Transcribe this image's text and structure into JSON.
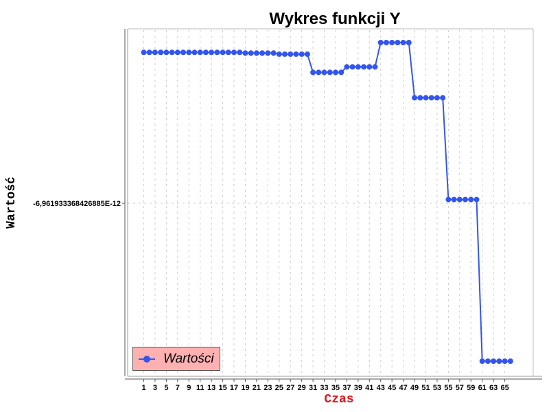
{
  "chart_data": {
    "type": "line",
    "title": "Wykres funkcji Y",
    "xlabel": "Czas",
    "ylabel": "Wartość",
    "x_ticks": [
      "1",
      "3",
      "5",
      "7",
      "9",
      "11",
      "13",
      "15",
      "17",
      "19",
      "21",
      "23",
      "25",
      "27",
      "29",
      "31",
      "33",
      "35",
      "37",
      "39",
      "41",
      "43",
      "45",
      "47",
      "49",
      "51",
      "53",
      "55",
      "57",
      "59",
      "61",
      "63",
      "65"
    ],
    "y_tick_label": "-6,961933368426885E-12",
    "grid": true,
    "legend_position": "bottom-left",
    "series": [
      {
        "name": "Wartości",
        "color": "#3355ee",
        "x": [
          1,
          2,
          3,
          4,
          5,
          6,
          7,
          8,
          9,
          10,
          11,
          12,
          13,
          14,
          15,
          16,
          17,
          18,
          19,
          20,
          21,
          22,
          23,
          24,
          25,
          26,
          27,
          28,
          29,
          30,
          31,
          32,
          33,
          34,
          35,
          36,
          37,
          38,
          39,
          40,
          41,
          42,
          43,
          44,
          45,
          46,
          47,
          48,
          49,
          50,
          51,
          52,
          53,
          54,
          55,
          56,
          57,
          58,
          59,
          60,
          61,
          62,
          63,
          64,
          65,
          66
        ],
        "values": [
          0.85,
          0.85,
          0.85,
          0.85,
          0.85,
          0.85,
          0.85,
          0.85,
          0.85,
          0.85,
          0.85,
          0.85,
          0.85,
          0.85,
          0.85,
          0.85,
          0.85,
          0.85,
          0.848,
          0.848,
          0.848,
          0.848,
          0.848,
          0.848,
          0.845,
          0.845,
          0.845,
          0.845,
          0.845,
          0.845,
          0.795,
          0.795,
          0.795,
          0.795,
          0.795,
          0.795,
          0.81,
          0.81,
          0.81,
          0.81,
          0.81,
          0.81,
          0.877,
          0.877,
          0.877,
          0.877,
          0.877,
          0.877,
          0.725,
          0.725,
          0.725,
          0.725,
          0.725,
          0.725,
          0.445,
          0.445,
          0.445,
          0.445,
          0.445,
          0.445,
          0.0,
          0.0,
          0.0,
          0.0,
          0.0,
          0.0
        ]
      }
    ]
  }
}
